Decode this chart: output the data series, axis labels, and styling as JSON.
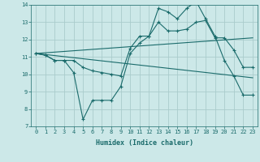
{
  "xlabel": "Humidex (Indice chaleur)",
  "ylabel": "",
  "background_color": "#cce8e8",
  "grid_color": "#aacccc",
  "line_color": "#1a6b6b",
  "xlim": [
    -0.5,
    23.5
  ],
  "ylim": [
    7,
    14
  ],
  "x_ticks": [
    0,
    1,
    2,
    3,
    4,
    5,
    6,
    7,
    8,
    9,
    10,
    11,
    12,
    13,
    14,
    15,
    16,
    17,
    18,
    19,
    20,
    21,
    22,
    23
  ],
  "y_ticks": [
    7,
    8,
    9,
    10,
    11,
    12,
    13,
    14
  ],
  "series1_x": [
    0,
    1,
    2,
    3,
    4,
    5,
    6,
    7,
    8,
    9,
    10,
    11,
    12,
    13,
    14,
    15,
    16,
    17,
    18,
    19,
    20,
    21,
    22,
    23
  ],
  "series1_y": [
    11.2,
    11.1,
    10.8,
    10.8,
    10.1,
    7.4,
    8.5,
    8.5,
    8.5,
    9.3,
    11.2,
    11.8,
    12.2,
    13.8,
    13.6,
    13.2,
    13.8,
    14.2,
    13.2,
    12.2,
    10.8,
    9.9,
    8.8,
    8.8
  ],
  "series2_x": [
    0,
    1,
    2,
    3,
    4,
    5,
    6,
    7,
    8,
    9,
    10,
    11,
    12,
    13,
    14,
    15,
    16,
    17,
    18,
    19,
    20,
    21,
    22,
    23
  ],
  "series2_y": [
    11.2,
    11.1,
    10.8,
    10.8,
    10.8,
    10.4,
    10.2,
    10.1,
    10.0,
    9.9,
    11.5,
    12.2,
    12.2,
    13.0,
    12.5,
    12.5,
    12.6,
    13.0,
    13.1,
    12.1,
    12.1,
    11.4,
    10.4,
    10.4
  ],
  "series3_x": [
    0,
    23
  ],
  "series3_y": [
    11.2,
    12.1
  ],
  "series4_x": [
    0,
    23
  ],
  "series4_y": [
    11.2,
    9.8
  ]
}
